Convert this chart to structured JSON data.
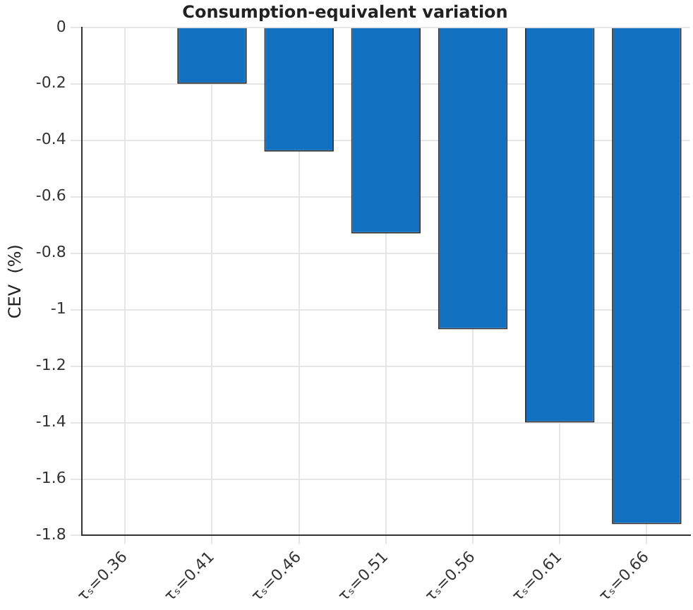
{
  "chart_data": {
    "type": "bar",
    "title": "Consumption-equivalent variation",
    "ylabel": "CEV  (%)",
    "categories": [
      "τₛ=0.36",
      "τₛ=0.41",
      "τₛ=0.46",
      "τₛ=0.51",
      "τₛ=0.56",
      "τₛ=0.61",
      "τₛ=0.66"
    ],
    "values": [
      0,
      -0.2,
      -0.44,
      -0.73,
      -1.07,
      -1.4,
      -1.76
    ],
    "color": "#1170c0",
    "ylim": [
      -1.8,
      0
    ],
    "yticks": [
      -1.8,
      -1.6,
      -1.4,
      -1.2,
      -1,
      -0.8,
      -0.6,
      -0.4,
      -0.2,
      0
    ],
    "grid": true
  }
}
